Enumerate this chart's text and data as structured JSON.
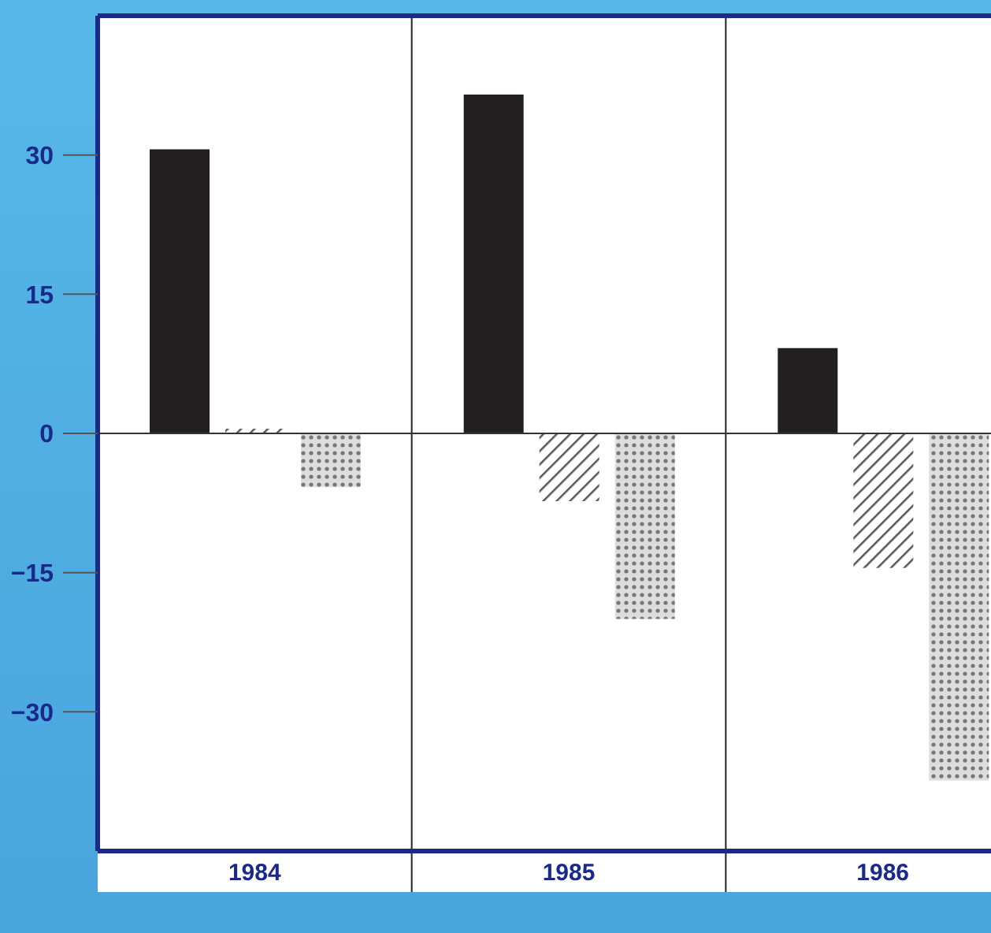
{
  "chart_data": {
    "type": "bar",
    "categories": [
      "1984",
      "1985",
      "1986"
    ],
    "series": [
      {
        "color": "#231f20",
        "values": [
          30.6,
          36.5,
          9.2
        ]
      },
      {
        "color": "#555555",
        "values": [
          0.5,
          -7.3,
          -14.5
        ]
      },
      {
        "color": "#777777",
        "values": [
          -5.8,
          -20,
          -37.4
        ]
      }
    ],
    "ylim": [
      -45,
      45
    ],
    "yticks": [
      {
        "value": -30,
        "label": "−30"
      },
      {
        "value": -15,
        "label": "−15"
      },
      0,
      15,
      30
    ],
    "ref_lines": [
      {
        "axis": "y",
        "value": 0
      }
    ]
  }
}
